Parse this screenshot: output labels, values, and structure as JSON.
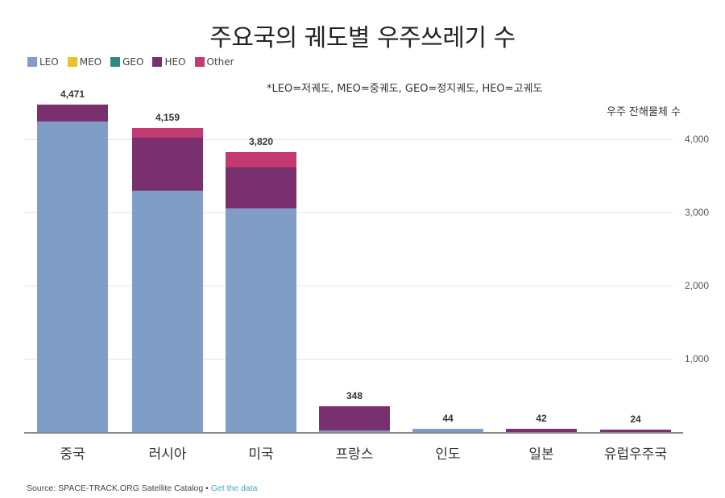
{
  "title": "주요국의 궤도별 우주쓰레기 수",
  "note": "*LEO=저궤도, MEO=중궤도, GEO=정지궤도, HEO=고궤도",
  "y_axis_label": "우주 잔해물체 수",
  "legend": [
    {
      "label": "LEO",
      "color": "#7f9dc6"
    },
    {
      "label": "MEO",
      "color": "#e8c22b"
    },
    {
      "label": "GEO",
      "color": "#2f8a83"
    },
    {
      "label": "HEO",
      "color": "#7a2f6e"
    },
    {
      "label": "Other",
      "color": "#c23a6f"
    }
  ],
  "source": {
    "text": "Source: SPACE-TRACK.ORG Satellite Catalog •",
    "link": "Get the data"
  },
  "chart_data": {
    "type": "bar",
    "stacked": true,
    "title": "주요국의 궤도별 우주쓰레기 수",
    "subtitle": "*LEO=저궤도, MEO=중궤도, GEO=정지궤도, HEO=고궤도",
    "xlabel": "",
    "ylabel": "우주 잔해물체 수",
    "ylim": [
      0,
      4500
    ],
    "yticks": [
      1000,
      2000,
      3000,
      4000
    ],
    "ytick_labels": [
      "1,000",
      "2,000",
      "3,000",
      "4,000"
    ],
    "grid": true,
    "legend_position": "top-left",
    "categories": [
      "중국",
      "러시아",
      "미국",
      "프랑스",
      "인도",
      "일본",
      "유럽우주국"
    ],
    "totals": [
      4471,
      4159,
      3820,
      348,
      44,
      42,
      24
    ],
    "total_labels": [
      "4,471",
      "4,159",
      "3,820",
      "348",
      "44",
      "42",
      "24"
    ],
    "series": [
      {
        "name": "LEO",
        "color": "#7f9dc6",
        "values": [
          4240,
          3300,
          3060,
          20,
          44,
          0,
          0
        ]
      },
      {
        "name": "MEO",
        "color": "#e8c22b",
        "values": [
          0,
          0,
          0,
          0,
          0,
          0,
          0
        ]
      },
      {
        "name": "GEO",
        "color": "#2f8a83",
        "values": [
          0,
          0,
          0,
          0,
          0,
          0,
          0
        ]
      },
      {
        "name": "HEO",
        "color": "#7a2f6e",
        "values": [
          231,
          719,
          560,
          328,
          0,
          42,
          24
        ]
      },
      {
        "name": "Other",
        "color": "#c23a6f",
        "values": [
          0,
          140,
          200,
          0,
          0,
          0,
          0
        ]
      }
    ],
    "source": "Source: SPACE-TRACK.ORG Satellite Catalog • Get the data"
  }
}
